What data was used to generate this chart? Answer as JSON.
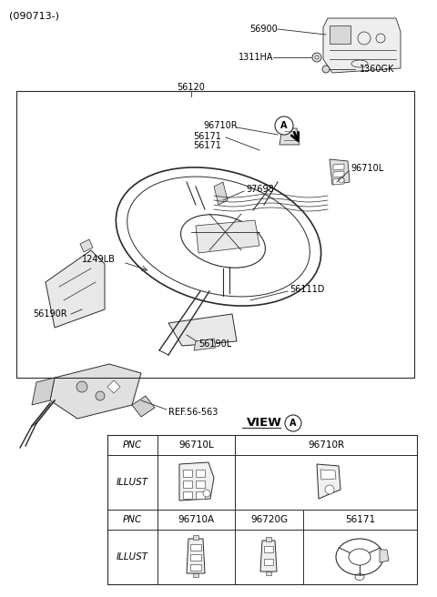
{
  "bg_color": "#ffffff",
  "line_color": "#2a2a2a",
  "text_color": "#000000",
  "header_text": "(090713-)",
  "label_56120": "56120",
  "label_56900": "56900",
  "label_1311HA": "1311HA",
  "label_1360GK": "1360GK",
  "label_96710R": "96710R",
  "label_56171a": "56171",
  "label_56171b": "56171",
  "label_96710L": "96710L",
  "label_97698": "97698",
  "label_1249LB": "1249LB",
  "label_56111D": "56111D",
  "label_56190R": "56190R",
  "label_56190L": "56190L",
  "label_REF": "REF.56-563",
  "label_VIEW": "VIEW",
  "label_A": "A",
  "tbl_r1c1": "PNC",
  "tbl_r1c2": "96710L",
  "tbl_r1c3": "96710R",
  "tbl_r2c1": "ILLUST",
  "tbl_r3c1": "PNC",
  "tbl_r3c2": "96710A",
  "tbl_r3c3": "96720G",
  "tbl_r3c4": "56171",
  "tbl_r4c1": "ILLUST",
  "fs": 7,
  "fs_hdr": 8,
  "fs_tbl": 7.5
}
